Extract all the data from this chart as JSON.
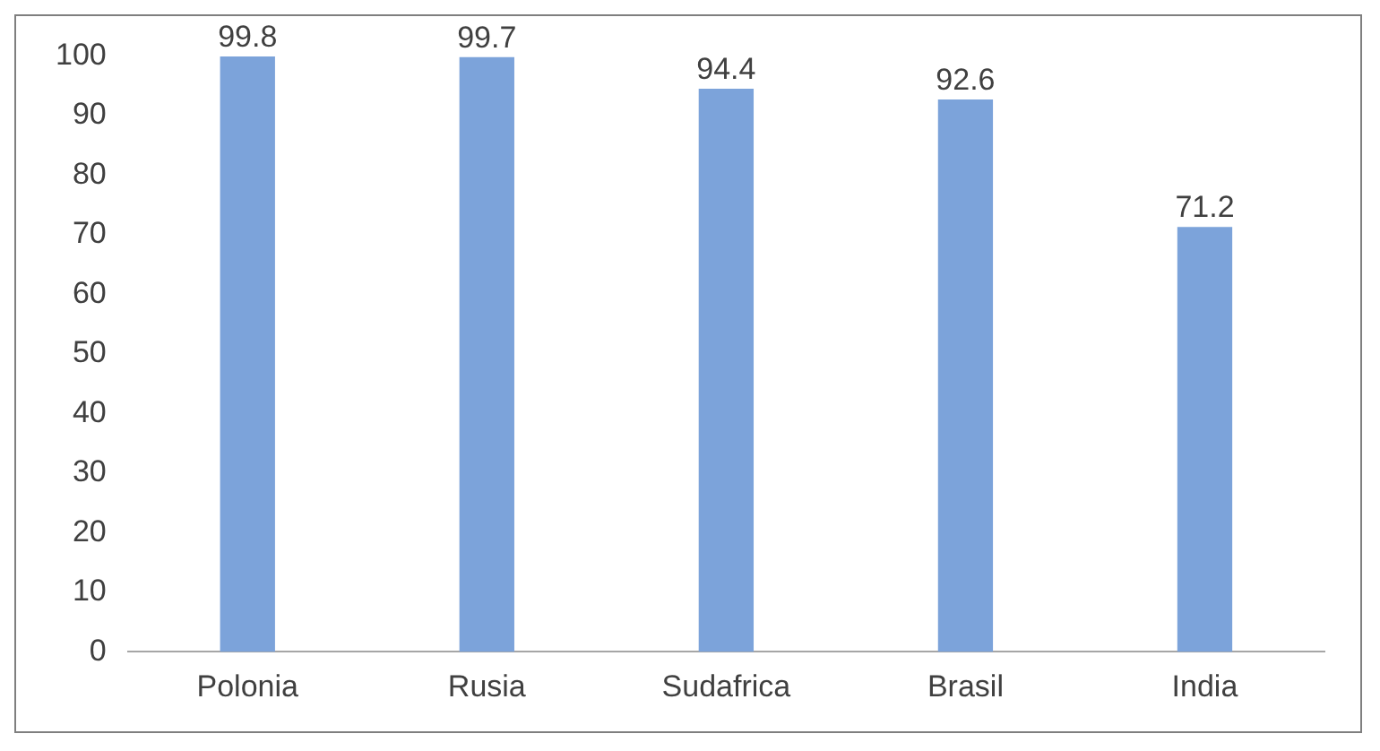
{
  "chart_data": {
    "type": "bar",
    "categories": [
      "Polonia",
      "Rusia",
      "Sudafrica",
      "Brasil",
      "India"
    ],
    "values": [
      99.8,
      99.7,
      94.4,
      92.6,
      71.2
    ],
    "color": "#7ca3da",
    "ylim": [
      0,
      100
    ],
    "yticks": [
      0,
      10,
      20,
      30,
      40,
      50,
      60,
      70,
      80,
      90,
      100
    ],
    "grid": false,
    "legend": false,
    "data_labels": true
  }
}
